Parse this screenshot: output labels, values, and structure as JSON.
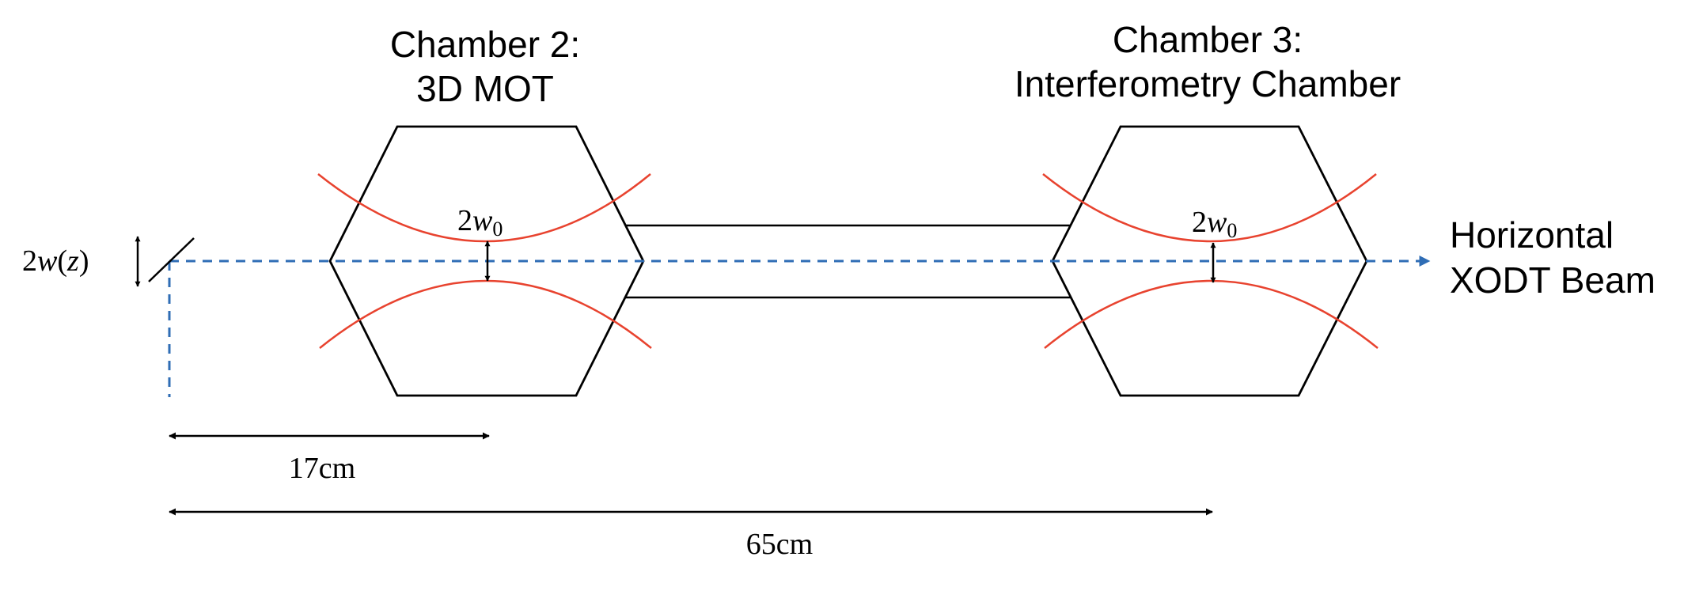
{
  "chambers": [
    {
      "title_line1": "Chamber 2:",
      "title_line2": "3D MOT",
      "waist_label": {
        "coef": "2",
        "var": "w",
        "sub": "0"
      }
    },
    {
      "title_line1": "Chamber 3:",
      "title_line2": "Interferometry Chamber",
      "waist_label": {
        "coef": "2",
        "var": "w",
        "sub": "0"
      }
    }
  ],
  "beam": {
    "label_line1": "Horizontal",
    "label_line2": "XODT Beam",
    "color": "#2f6db5"
  },
  "beam_width_label": {
    "coef": "2",
    "var": "w",
    "open": "(",
    "arg": "z",
    "close": ")"
  },
  "dimensions": {
    "short": "17cm",
    "long": "65cm"
  },
  "colors": {
    "outline": "#000000",
    "gaussian": "#e8432f"
  }
}
